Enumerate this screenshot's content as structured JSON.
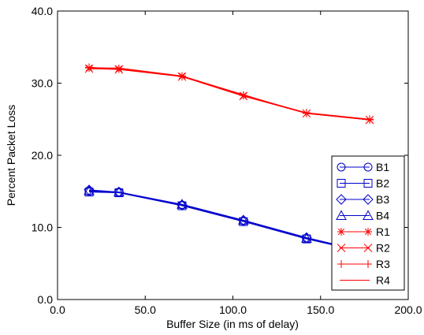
{
  "chart_data": {
    "type": "line",
    "xlabel": "Buffer Size (in ms of delay)",
    "ylabel": "Percent Packet Loss",
    "xlim": [
      0,
      200
    ],
    "ylim": [
      0,
      40
    ],
    "x_ticks": [
      "0.0",
      "50.0",
      "100.0",
      "150.0",
      "200.0"
    ],
    "y_ticks": [
      "0.0",
      "10.0",
      "20.0",
      "30.0",
      "40.0"
    ],
    "grid": false,
    "legend_position": "bottom-right",
    "series": [
      {
        "name": "B1",
        "color": "#0000cc",
        "marker": "circle",
        "x": [
          18,
          35,
          71,
          106,
          142,
          178
        ],
        "y": [
          15.0,
          14.9,
          13.1,
          10.9,
          8.5,
          6.5
        ]
      },
      {
        "name": "B2",
        "color": "#0000cc",
        "marker": "square",
        "x": [
          18,
          35,
          71,
          106,
          142,
          178
        ],
        "y": [
          14.9,
          14.8,
          13.0,
          10.8,
          8.4,
          6.4
        ]
      },
      {
        "name": "B3",
        "color": "#0000cc",
        "marker": "diamond",
        "x": [
          18,
          35,
          71,
          106,
          142,
          178
        ],
        "y": [
          15.2,
          14.9,
          13.1,
          11.0,
          8.6,
          6.5
        ]
      },
      {
        "name": "B4",
        "color": "#0000cc",
        "marker": "triangle",
        "x": [
          18,
          35,
          71,
          106,
          142,
          178
        ],
        "y": [
          15.1,
          14.9,
          13.2,
          11.0,
          8.5,
          6.5
        ]
      },
      {
        "name": "R1",
        "color": "#ff0000",
        "marker": "asterisk",
        "x": [
          18,
          35,
          71,
          106,
          142,
          178
        ],
        "y": [
          32.1,
          32.0,
          31.0,
          28.3,
          25.8,
          24.9
        ]
      },
      {
        "name": "R2",
        "color": "#ff0000",
        "marker": "x",
        "x": [
          18,
          35,
          71,
          106,
          142,
          178
        ],
        "y": [
          32.0,
          31.9,
          30.9,
          28.2,
          25.8,
          24.9
        ]
      },
      {
        "name": "R3",
        "color": "#ff0000",
        "marker": "plus",
        "x": [
          18,
          35,
          71,
          106,
          142,
          178
        ],
        "y": [
          32.2,
          32.0,
          30.9,
          28.3,
          25.9,
          25.0
        ]
      },
      {
        "name": "R4",
        "color": "#ff0000",
        "marker": "none",
        "x": [
          18,
          35,
          71,
          106,
          142,
          178
        ],
        "y": [
          32.1,
          32.1,
          31.0,
          28.4,
          25.8,
          24.9
        ]
      }
    ]
  }
}
